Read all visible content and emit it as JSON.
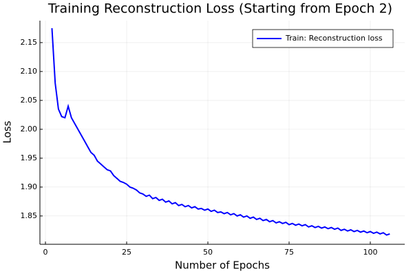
{
  "chart_data": {
    "type": "line",
    "title": "Training Reconstruction Loss (Starting from Epoch 2)",
    "x_label": "Number of Epochs",
    "y_label": "Loss",
    "x": [
      2,
      3,
      4,
      5,
      6,
      7,
      8,
      9,
      10,
      11,
      12,
      13,
      14,
      15,
      16,
      17,
      18,
      19,
      20,
      21,
      22,
      23,
      24,
      25,
      26,
      27,
      28,
      29,
      30,
      31,
      32,
      33,
      34,
      35,
      36,
      37,
      38,
      39,
      40,
      41,
      42,
      43,
      44,
      45,
      46,
      47,
      48,
      49,
      50,
      51,
      52,
      53,
      54,
      55,
      56,
      57,
      58,
      59,
      60,
      61,
      62,
      63,
      64,
      65,
      66,
      67,
      68,
      69,
      70,
      71,
      72,
      73,
      74,
      75,
      76,
      77,
      78,
      79,
      80,
      81,
      82,
      83,
      84,
      85,
      86,
      87,
      88,
      89,
      90,
      91,
      92,
      93,
      94,
      95,
      96,
      97,
      98,
      99,
      100,
      101,
      102,
      103,
      104,
      105,
      106
    ],
    "series": [
      {
        "name": "Train: Reconstruction loss",
        "color": "#0000ff",
        "values": [
          2.175,
          2.08,
          2.035,
          2.022,
          2.02,
          2.04,
          2.02,
          2.01,
          2.0,
          1.99,
          1.98,
          1.97,
          1.96,
          1.955,
          1.945,
          1.94,
          1.935,
          1.93,
          1.928,
          1.92,
          1.915,
          1.91,
          1.908,
          1.905,
          1.9,
          1.898,
          1.895,
          1.89,
          1.888,
          1.884,
          1.886,
          1.88,
          1.882,
          1.877,
          1.879,
          1.874,
          1.876,
          1.871,
          1.873,
          1.868,
          1.87,
          1.866,
          1.868,
          1.864,
          1.866,
          1.862,
          1.863,
          1.86,
          1.862,
          1.858,
          1.86,
          1.856,
          1.857,
          1.854,
          1.856,
          1.852,
          1.854,
          1.85,
          1.852,
          1.848,
          1.85,
          1.846,
          1.848,
          1.844,
          1.846,
          1.842,
          1.844,
          1.84,
          1.842,
          1.838,
          1.84,
          1.837,
          1.839,
          1.835,
          1.837,
          1.834,
          1.836,
          1.833,
          1.835,
          1.831,
          1.833,
          1.83,
          1.832,
          1.829,
          1.831,
          1.828,
          1.83,
          1.827,
          1.829,
          1.825,
          1.827,
          1.824,
          1.826,
          1.823,
          1.825,
          1.822,
          1.824,
          1.821,
          1.823,
          1.82,
          1.822,
          1.819,
          1.821,
          1.817,
          1.819
        ]
      }
    ],
    "xlim": [
      -1.7,
      110.6
    ],
    "ylim": [
      1.801,
      2.188
    ],
    "xticks": [
      0,
      25,
      50,
      75,
      100
    ],
    "yticks": [
      1.85,
      {
        "value": 1.9,
        "label": "1.90"
      },
      1.95,
      {
        "value": 2.0,
        "label": "2.00"
      },
      2.05,
      {
        "value": 2.1,
        "label": "2.10"
      },
      2.15
    ],
    "grid": true,
    "legend": "top-right"
  }
}
